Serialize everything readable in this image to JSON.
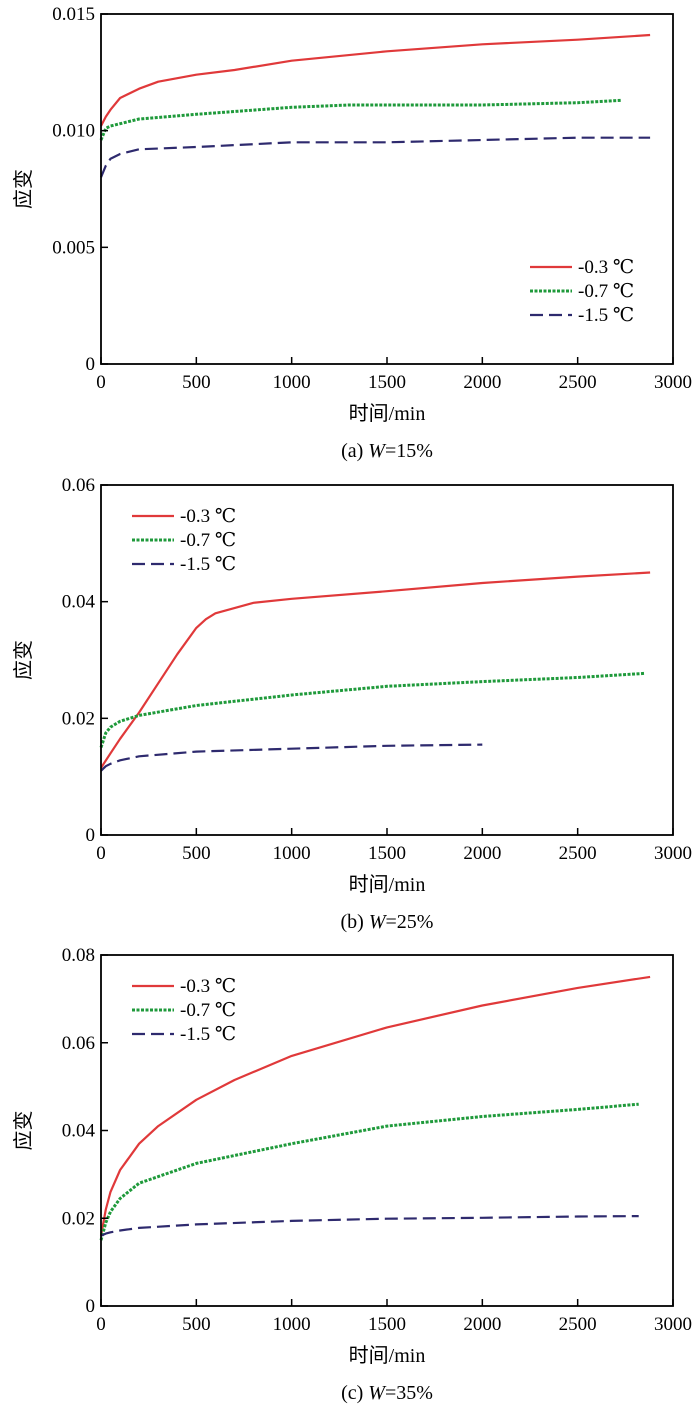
{
  "chart_data": [
    {
      "type": "line",
      "caption_prefix": "(a) ",
      "caption_italic": "W",
      "caption_suffix": "=15%",
      "xlabel": "时间/min",
      "ylabel": "应变",
      "xlim": [
        0,
        3000
      ],
      "ylim": [
        0,
        0.015
      ],
      "xticks": [
        "0",
        "500",
        "1000",
        "1500",
        "2000",
        "2500",
        "3000"
      ],
      "yticks": [
        "0",
        "0.005",
        "0.010",
        "0.015"
      ],
      "ytick_values": [
        0,
        0.005,
        0.01,
        0.015
      ],
      "legend_position": "bottom-right",
      "series": [
        {
          "name": "-0.3 ℃",
          "color": "#e0393a",
          "dash": "solid",
          "x": [
            0,
            25,
            50,
            100,
            200,
            300,
            500,
            700,
            1000,
            1500,
            2000,
            2500,
            2880
          ],
          "y": [
            0.0102,
            0.0106,
            0.0109,
            0.0114,
            0.0118,
            0.0121,
            0.0124,
            0.0126,
            0.013,
            0.0134,
            0.0137,
            0.0139,
            0.0141
          ]
        },
        {
          "name": "-0.7 ℃",
          "color": "#1f9a3b",
          "dash": "dotted",
          "x": [
            0,
            25,
            50,
            100,
            200,
            500,
            1000,
            1300,
            1500,
            2000,
            2500,
            2730
          ],
          "y": [
            0.0096,
            0.0101,
            0.0102,
            0.0103,
            0.0105,
            0.0107,
            0.011,
            0.0111,
            0.0111,
            0.0111,
            0.0112,
            0.0113
          ]
        },
        {
          "name": "-1.5 ℃",
          "color": "#2e2a6e",
          "dash": "dashed",
          "x": [
            0,
            25,
            50,
            100,
            200,
            500,
            1000,
            1500,
            2000,
            2500,
            2880
          ],
          "y": [
            0.008,
            0.0085,
            0.0088,
            0.009,
            0.0092,
            0.0093,
            0.0095,
            0.0095,
            0.0096,
            0.0097,
            0.0097
          ]
        }
      ]
    },
    {
      "type": "line",
      "caption_prefix": "(b) ",
      "caption_italic": "W",
      "caption_suffix": "=25%",
      "xlabel": "时间/min",
      "ylabel": "应变",
      "xlim": [
        0,
        3000
      ],
      "ylim": [
        0,
        0.06
      ],
      "xticks": [
        "0",
        "500",
        "1000",
        "1500",
        "2000",
        "2500",
        "3000"
      ],
      "yticks": [
        "0",
        "0.02",
        "0.04",
        "0.06"
      ],
      "ytick_values": [
        0,
        0.02,
        0.04,
        0.06
      ],
      "legend_position": "top-left",
      "series": [
        {
          "name": "-0.3 ℃",
          "color": "#e0393a",
          "dash": "solid",
          "x": [
            0,
            50,
            100,
            200,
            300,
            400,
            500,
            550,
            600,
            800,
            1000,
            1500,
            2000,
            2500,
            2880
          ],
          "y": [
            0.0115,
            0.014,
            0.0165,
            0.021,
            0.026,
            0.031,
            0.0355,
            0.037,
            0.038,
            0.0398,
            0.0405,
            0.0418,
            0.0432,
            0.0443,
            0.045
          ]
        },
        {
          "name": "-0.7 ℃",
          "color": "#1f9a3b",
          "dash": "dotted",
          "x": [
            0,
            25,
            50,
            100,
            200,
            500,
            1000,
            1500,
            2000,
            2500,
            2850
          ],
          "y": [
            0.015,
            0.0175,
            0.0185,
            0.0195,
            0.0205,
            0.0222,
            0.024,
            0.0255,
            0.0263,
            0.027,
            0.0277
          ]
        },
        {
          "name": "-1.5 ℃",
          "color": "#2e2a6e",
          "dash": "dashed",
          "x": [
            0,
            25,
            50,
            100,
            200,
            500,
            1000,
            1500,
            2000
          ],
          "y": [
            0.011,
            0.0118,
            0.0122,
            0.0128,
            0.0135,
            0.0143,
            0.0148,
            0.0153,
            0.0155
          ]
        }
      ]
    },
    {
      "type": "line",
      "caption_prefix": "(c) ",
      "caption_italic": "W",
      "caption_suffix": "=35%",
      "xlabel": "时间/min",
      "ylabel": "应变",
      "xlim": [
        0,
        3000
      ],
      "ylim": [
        0,
        0.08
      ],
      "xticks": [
        "0",
        "500",
        "1000",
        "1500",
        "2000",
        "2500",
        "3000"
      ],
      "yticks": [
        "0",
        "0.02",
        "0.04",
        "0.06",
        "0.08"
      ],
      "ytick_values": [
        0,
        0.02,
        0.04,
        0.06,
        0.08
      ],
      "legend_position": "top-left",
      "series": [
        {
          "name": "-0.3 ℃",
          "color": "#e0393a",
          "dash": "solid",
          "x": [
            0,
            25,
            50,
            100,
            200,
            300,
            500,
            700,
            1000,
            1500,
            2000,
            2500,
            2880
          ],
          "y": [
            0.016,
            0.022,
            0.026,
            0.031,
            0.037,
            0.041,
            0.047,
            0.0515,
            0.057,
            0.0635,
            0.0685,
            0.0725,
            0.075
          ]
        },
        {
          "name": "-0.7 ℃",
          "color": "#1f9a3b",
          "dash": "dotted",
          "x": [
            0,
            25,
            50,
            100,
            200,
            500,
            1000,
            1500,
            2000,
            2500,
            2820
          ],
          "y": [
            0.015,
            0.019,
            0.0215,
            0.0245,
            0.028,
            0.0325,
            0.037,
            0.041,
            0.0432,
            0.0448,
            0.046
          ]
        },
        {
          "name": "-1.5 ℃",
          "color": "#2e2a6e",
          "dash": "dashed",
          "x": [
            0,
            25,
            50,
            100,
            200,
            500,
            1000,
            1500,
            2000,
            2500,
            2820
          ],
          "y": [
            0.016,
            0.0165,
            0.0168,
            0.0172,
            0.0178,
            0.0186,
            0.0194,
            0.0199,
            0.0201,
            0.0204,
            0.0205
          ]
        }
      ]
    }
  ]
}
